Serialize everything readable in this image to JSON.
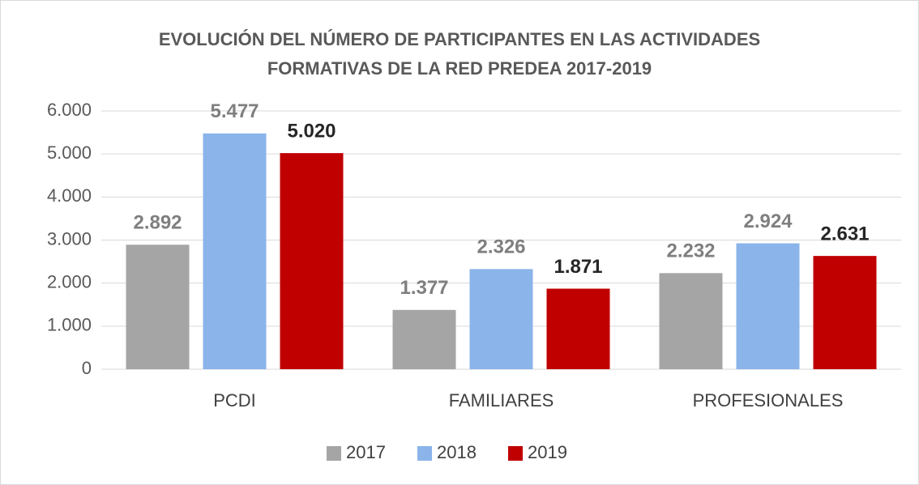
{
  "chart_data": {
    "type": "bar",
    "title": [
      "EVOLUCIÓN DEL NÚMERO DE PARTICIPANTES EN LAS ACTIVIDADES",
      "FORMATIVAS DE LA RED PREDEA 2017-2019"
    ],
    "categories": [
      "PCDI",
      "FAMILIARES",
      "PROFESIONALES"
    ],
    "series": [
      {
        "name": "2017",
        "color": "#a5a5a5",
        "label_color": "#7f7f7f",
        "values": [
          2892,
          1377,
          2232
        ],
        "value_labels": [
          "2.892",
          "1.377",
          "2.232"
        ]
      },
      {
        "name": "2018",
        "color": "#8ab4ea",
        "label_color": "#7f7f7f",
        "values": [
          5477,
          2326,
          2924
        ],
        "value_labels": [
          "5.477",
          "2.326",
          "2.924"
        ]
      },
      {
        "name": "2019",
        "color": "#c00000",
        "label_color": "#262626",
        "values": [
          5020,
          1871,
          2631
        ],
        "value_labels": [
          "5.020",
          "1.871",
          "2.631"
        ]
      }
    ],
    "ylim": [
      0,
      6000
    ],
    "yticks": [
      0,
      {
        "value": 1000,
        "label": "1.000"
      },
      {
        "value": 2000,
        "label": "2.000"
      },
      {
        "value": 3000,
        "label": "3.000"
      },
      {
        "value": 4000,
        "label": "4.000"
      },
      {
        "value": 5000,
        "label": "5.000"
      },
      {
        "value": 6000,
        "label": "6.000"
      }
    ],
    "grid": true,
    "legend": "bottom"
  }
}
